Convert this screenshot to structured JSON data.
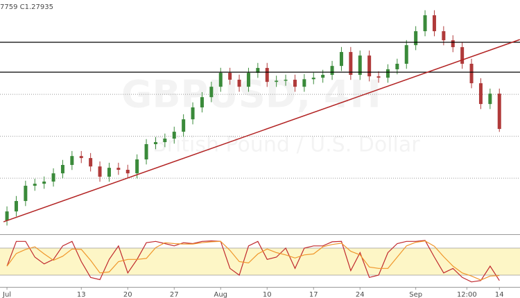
{
  "chart_data": {
    "type": "candlestick",
    "header": "7759 C1.27935",
    "watermark": "GBPUSD, 4H",
    "watermark_sub": "British Pound / U.S. Dollar",
    "xlim": [
      -0.75,
      55.22
    ],
    "ylim": [
      1.2166,
      1.3562
    ],
    "gridlines": [
      1.25,
      1.275,
      1.3
    ],
    "xticks": [
      {
        "value": 0,
        "label": "Jul"
      },
      {
        "value": 8,
        "label": "13"
      },
      {
        "value": 13,
        "label": "20"
      },
      {
        "value": 18,
        "label": "27"
      },
      {
        "value": 23,
        "label": "Aug"
      },
      {
        "value": 28,
        "label": "10"
      },
      {
        "value": 33,
        "label": "17"
      },
      {
        "value": 38,
        "label": "24"
      },
      {
        "value": 44,
        "label": "Sep"
      },
      {
        "value": 49.5,
        "label": "12:00"
      },
      {
        "value": 53,
        "label": "14"
      }
    ],
    "up_color": "#3a8a3a",
    "down_color": "#b03a3a",
    "ohlc": [
      [
        1.2248,
        1.2332,
        1.2218,
        1.2302
      ],
      [
        1.2302,
        1.2394,
        1.2272,
        1.2364
      ],
      [
        1.2364,
        1.2485,
        1.2334,
        1.2455
      ],
      [
        1.2455,
        1.2497,
        1.2425,
        1.2467
      ],
      [
        1.2467,
        1.251,
        1.2437,
        1.248
      ],
      [
        1.248,
        1.2559,
        1.245,
        1.2529
      ],
      [
        1.2529,
        1.2609,
        1.2499,
        1.2579
      ],
      [
        1.2579,
        1.2662,
        1.2549,
        1.2632
      ],
      [
        1.2632,
        1.2662,
        1.259,
        1.262
      ],
      [
        1.262,
        1.265,
        1.254,
        1.257
      ],
      [
        1.257,
        1.26,
        1.2479,
        1.2509
      ],
      [
        1.2509,
        1.2592,
        1.2479,
        1.2562
      ],
      [
        1.2562,
        1.2592,
        1.252,
        1.255
      ],
      [
        1.255,
        1.258,
        1.2499,
        1.2529
      ],
      [
        1.2529,
        1.2642,
        1.2499,
        1.2612
      ],
      [
        1.2612,
        1.2733,
        1.2582,
        1.2703
      ],
      [
        1.2703,
        1.2745,
        1.2673,
        1.2715
      ],
      [
        1.2715,
        1.2766,
        1.2685,
        1.2736
      ],
      [
        1.2736,
        1.2807,
        1.2706,
        1.2777
      ],
      [
        1.2777,
        1.2881,
        1.2747,
        1.2851
      ],
      [
        1.2851,
        1.2952,
        1.2821,
        1.2922
      ],
      [
        1.2922,
        1.3013,
        1.2892,
        1.2983
      ],
      [
        1.2983,
        1.3075,
        1.2953,
        1.3045
      ],
      [
        1.3045,
        1.3158,
        1.3015,
        1.3128
      ],
      [
        1.3128,
        1.3158,
        1.3057,
        1.3087
      ],
      [
        1.3087,
        1.3117,
        1.3015,
        1.3045
      ],
      [
        1.3045,
        1.3158,
        1.3015,
        1.3128
      ],
      [
        1.3128,
        1.3187,
        1.3098,
        1.3157
      ],
      [
        1.3157,
        1.3187,
        1.3044,
        1.3074
      ],
      [
        1.3074,
        1.3111,
        1.3044,
        1.3081
      ],
      [
        1.3081,
        1.3117,
        1.3051,
        1.3087
      ],
      [
        1.3087,
        1.3117,
        1.3015,
        1.3045
      ],
      [
        1.3045,
        1.312,
        1.3015,
        1.309
      ],
      [
        1.309,
        1.3129,
        1.306,
        1.3099
      ],
      [
        1.3099,
        1.3146,
        1.3069,
        1.3116
      ],
      [
        1.3116,
        1.3199,
        1.3086,
        1.3169
      ],
      [
        1.3169,
        1.3282,
        1.3139,
        1.3252
      ],
      [
        1.3252,
        1.3282,
        1.3086,
        1.3116
      ],
      [
        1.3116,
        1.3261,
        1.3086,
        1.3231
      ],
      [
        1.3231,
        1.3261,
        1.3077,
        1.3107
      ],
      [
        1.3107,
        1.3137,
        1.3069,
        1.3099
      ],
      [
        1.3099,
        1.3179,
        1.3069,
        1.3149
      ],
      [
        1.3149,
        1.3212,
        1.3119,
        1.3182
      ],
      [
        1.3182,
        1.3323,
        1.3152,
        1.3293
      ],
      [
        1.3293,
        1.3406,
        1.3263,
        1.3376
      ],
      [
        1.3376,
        1.3501,
        1.3346,
        1.3471
      ],
      [
        1.3471,
        1.3501,
        1.3346,
        1.3376
      ],
      [
        1.3376,
        1.3406,
        1.3292,
        1.3322
      ],
      [
        1.3322,
        1.3352,
        1.3251,
        1.3281
      ],
      [
        1.3281,
        1.3311,
        1.3152,
        1.3182
      ],
      [
        1.3182,
        1.3212,
        1.3036,
        1.3066
      ],
      [
        1.3066,
        1.3096,
        1.2912,
        1.2942
      ],
      [
        1.2942,
        1.3034,
        1.2912,
        1.3004
      ],
      [
        1.3004,
        1.3034,
        1.27759,
        1.27935
      ]
    ],
    "hlines": {
      "values": [
        1.331,
        1.3132
      ],
      "color": "#000000"
    },
    "trendline": {
      "x": [
        -0.37,
        55.2
      ],
      "y": [
        1.224,
        1.3326
      ],
      "color": "#b22222"
    },
    "oscillator": {
      "type": "line",
      "ylim": [
        0,
        100
      ],
      "levels": [
        20,
        80
      ],
      "band_color": "#fdf6c6",
      "series": [
        {
          "color": "#c0282d",
          "values": [
            40,
            95,
            95,
            60,
            45,
            55,
            85,
            95,
            50,
            15,
            10,
            55,
            85,
            25,
            55,
            92,
            95,
            90,
            85,
            92,
            90,
            95,
            96,
            95,
            35,
            20,
            85,
            95,
            55,
            60,
            80,
            35,
            80,
            85,
            85,
            94,
            95,
            30,
            70,
            15,
            20,
            70,
            90,
            95,
            95,
            97,
            60,
            25,
            35,
            15,
            5,
            8,
            40,
            8
          ]
        },
        {
          "color": "#f0962a",
          "values": [
            40,
            68,
            77,
            83,
            67,
            53,
            62,
            78,
            77,
            53,
            25,
            27,
            50,
            55,
            55,
            57,
            81,
            92,
            90,
            89,
            89,
            92,
            94,
            95,
            75,
            50,
            47,
            67,
            78,
            70,
            65,
            58,
            65,
            67,
            83,
            88,
            91,
            73,
            65,
            38,
            35,
            35,
            60,
            85,
            93,
            96,
            84,
            61,
            40,
            25,
            18,
            9,
            18,
            19
          ]
        }
      ]
    }
  }
}
